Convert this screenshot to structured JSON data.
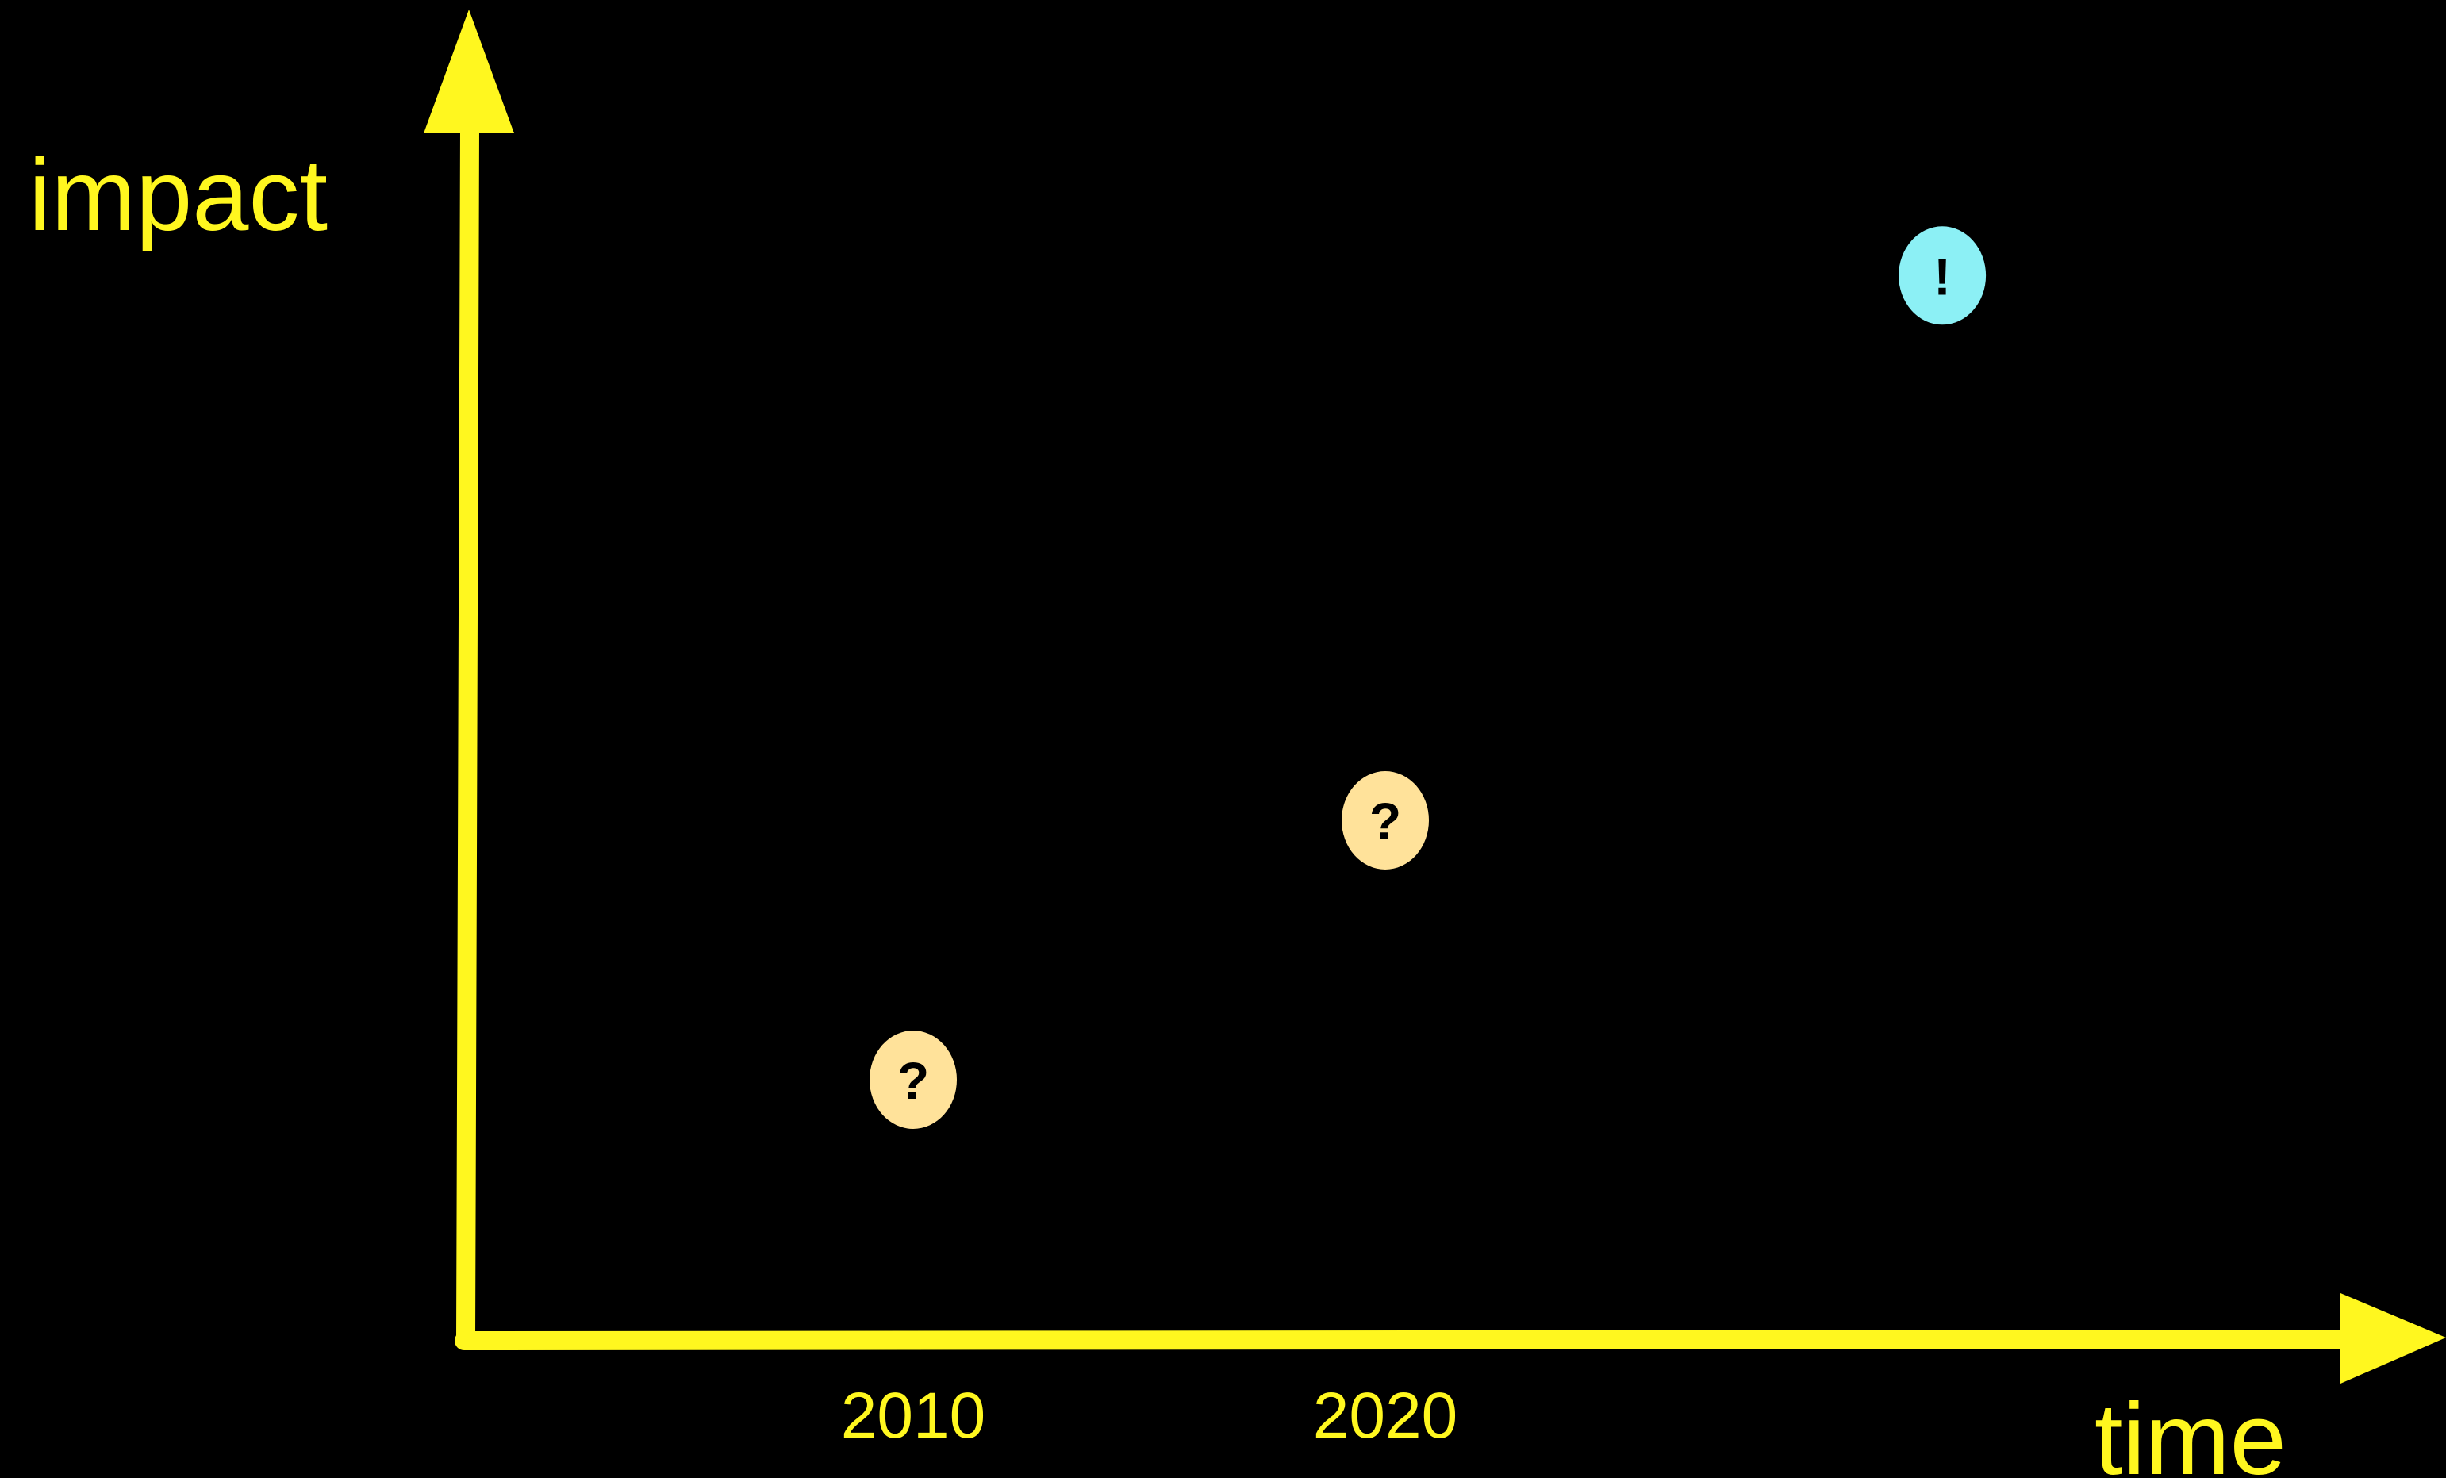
{
  "chart_data": {
    "type": "scatter",
    "title": "",
    "xlabel": "time",
    "ylabel": "impact",
    "x_ticks": [
      "2010",
      "2020"
    ],
    "points": [
      {
        "x": 2010,
        "y": 1.0,
        "symbol": "?",
        "color": "#FFE29A"
      },
      {
        "x": 2020,
        "y": 2.0,
        "symbol": "?",
        "color": "#FFE29A"
      },
      {
        "x": 2031.8,
        "y": 4.1,
        "symbol": "!",
        "color": "#8CF0F5"
      }
    ],
    "y_axis_values_shown": false,
    "grid": false,
    "legend": "none"
  },
  "colors": {
    "background": "#000000",
    "axis": "#FFF71F",
    "text": "#FFF71F",
    "uncertain_marker": "#FFE29A",
    "certain_marker": "#8CF0F5",
    "marker_text": "#000000"
  }
}
